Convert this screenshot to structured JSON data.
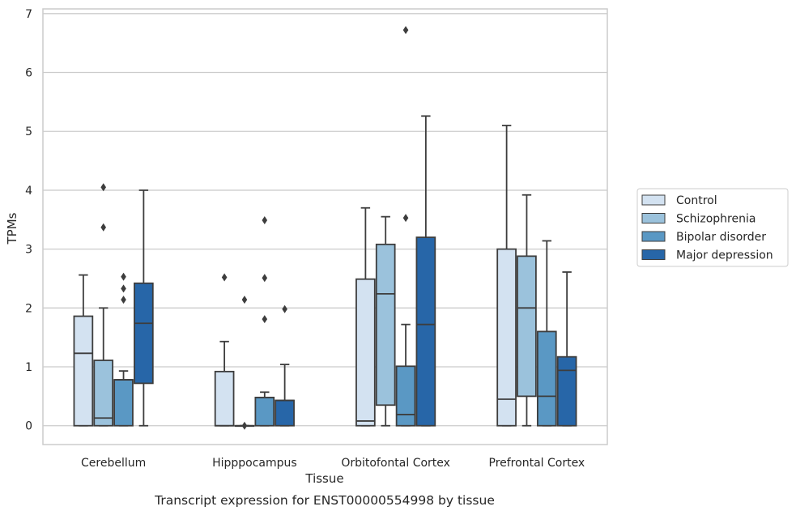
{
  "chart_data": {
    "type": "box",
    "title": "",
    "caption": "Transcript expression for ENST00000554998 by tissue",
    "xlabel": "Tissue",
    "ylabel": "TPMs",
    "ylim": [
      -0.32,
      7.08
    ],
    "yticks": [
      0,
      1,
      2,
      3,
      4,
      5,
      6,
      7
    ],
    "grid": "horizontal",
    "legend_placement": "right",
    "categories": [
      "Cerebellum",
      "Hipppocampus",
      "Orbitofontal Cortex",
      "Prefrontal Cortex"
    ],
    "series": [
      {
        "name": "Control",
        "color": "#d3e2f1",
        "boxes": [
          {
            "whisker_low": 0.0,
            "q1": 0.0,
            "median": 1.23,
            "q3": 1.86,
            "whisker_high": 2.56,
            "outliers": []
          },
          {
            "whisker_low": 0.0,
            "q1": 0.0,
            "median": 0.0,
            "q3": 0.92,
            "whisker_high": 1.43,
            "outliers": [
              2.52
            ]
          },
          {
            "whisker_low": 0.0,
            "q1": 0.0,
            "median": 0.08,
            "q3": 2.49,
            "whisker_high": 3.7,
            "outliers": []
          },
          {
            "whisker_low": 0.0,
            "q1": 0.0,
            "median": 0.45,
            "q3": 3.0,
            "whisker_high": 5.1,
            "outliers": []
          }
        ]
      },
      {
        "name": "Schizophrenia",
        "color": "#9bc2dc",
        "boxes": [
          {
            "whisker_low": 0.0,
            "q1": 0.0,
            "median": 0.13,
            "q3": 1.11,
            "whisker_high": 2.0,
            "outliers": [
              4.05,
              3.37
            ]
          },
          {
            "whisker_low": 0.0,
            "q1": 0.0,
            "median": 0.0,
            "q3": 0.0,
            "whisker_high": 0.0,
            "outliers": [
              2.14,
              0.0
            ]
          },
          {
            "whisker_low": 0.0,
            "q1": 0.35,
            "median": 2.24,
            "q3": 3.08,
            "whisker_high": 3.55,
            "outliers": []
          },
          {
            "whisker_low": 0.0,
            "q1": 0.5,
            "median": 2.0,
            "q3": 2.88,
            "whisker_high": 3.92,
            "outliers": []
          }
        ]
      },
      {
        "name": "Bipolar disorder",
        "color": "#5a98c4",
        "boxes": [
          {
            "whisker_low": 0.0,
            "q1": 0.0,
            "median": 0.78,
            "q3": 0.78,
            "whisker_high": 0.93,
            "outliers": [
              2.53,
              2.33,
              2.14
            ]
          },
          {
            "whisker_low": 0.0,
            "q1": 0.0,
            "median": 0.48,
            "q3": 0.48,
            "whisker_high": 0.57,
            "outliers": [
              3.49,
              2.51,
              1.81
            ]
          },
          {
            "whisker_low": 0.0,
            "q1": 0.0,
            "median": 0.19,
            "q3": 1.01,
            "whisker_high": 1.72,
            "outliers": [
              3.53,
              6.72
            ]
          },
          {
            "whisker_low": 0.0,
            "q1": 0.0,
            "median": 0.5,
            "q3": 1.6,
            "whisker_high": 3.14,
            "outliers": []
          }
        ]
      },
      {
        "name": "Major depression",
        "color": "#2766a8",
        "boxes": [
          {
            "whisker_low": 0.0,
            "q1": 0.72,
            "median": 1.74,
            "q3": 2.42,
            "whisker_high": 4.0,
            "outliers": []
          },
          {
            "whisker_low": 0.0,
            "q1": 0.0,
            "median": 0.43,
            "q3": 0.43,
            "whisker_high": 1.04,
            "outliers": [
              1.98
            ]
          },
          {
            "whisker_low": 0.0,
            "q1": 0.0,
            "median": 1.72,
            "q3": 3.2,
            "whisker_high": 5.26,
            "outliers": []
          },
          {
            "whisker_low": 0.0,
            "q1": 0.0,
            "median": 0.94,
            "q3": 1.17,
            "whisker_high": 2.61,
            "outliers": []
          }
        ]
      }
    ]
  }
}
